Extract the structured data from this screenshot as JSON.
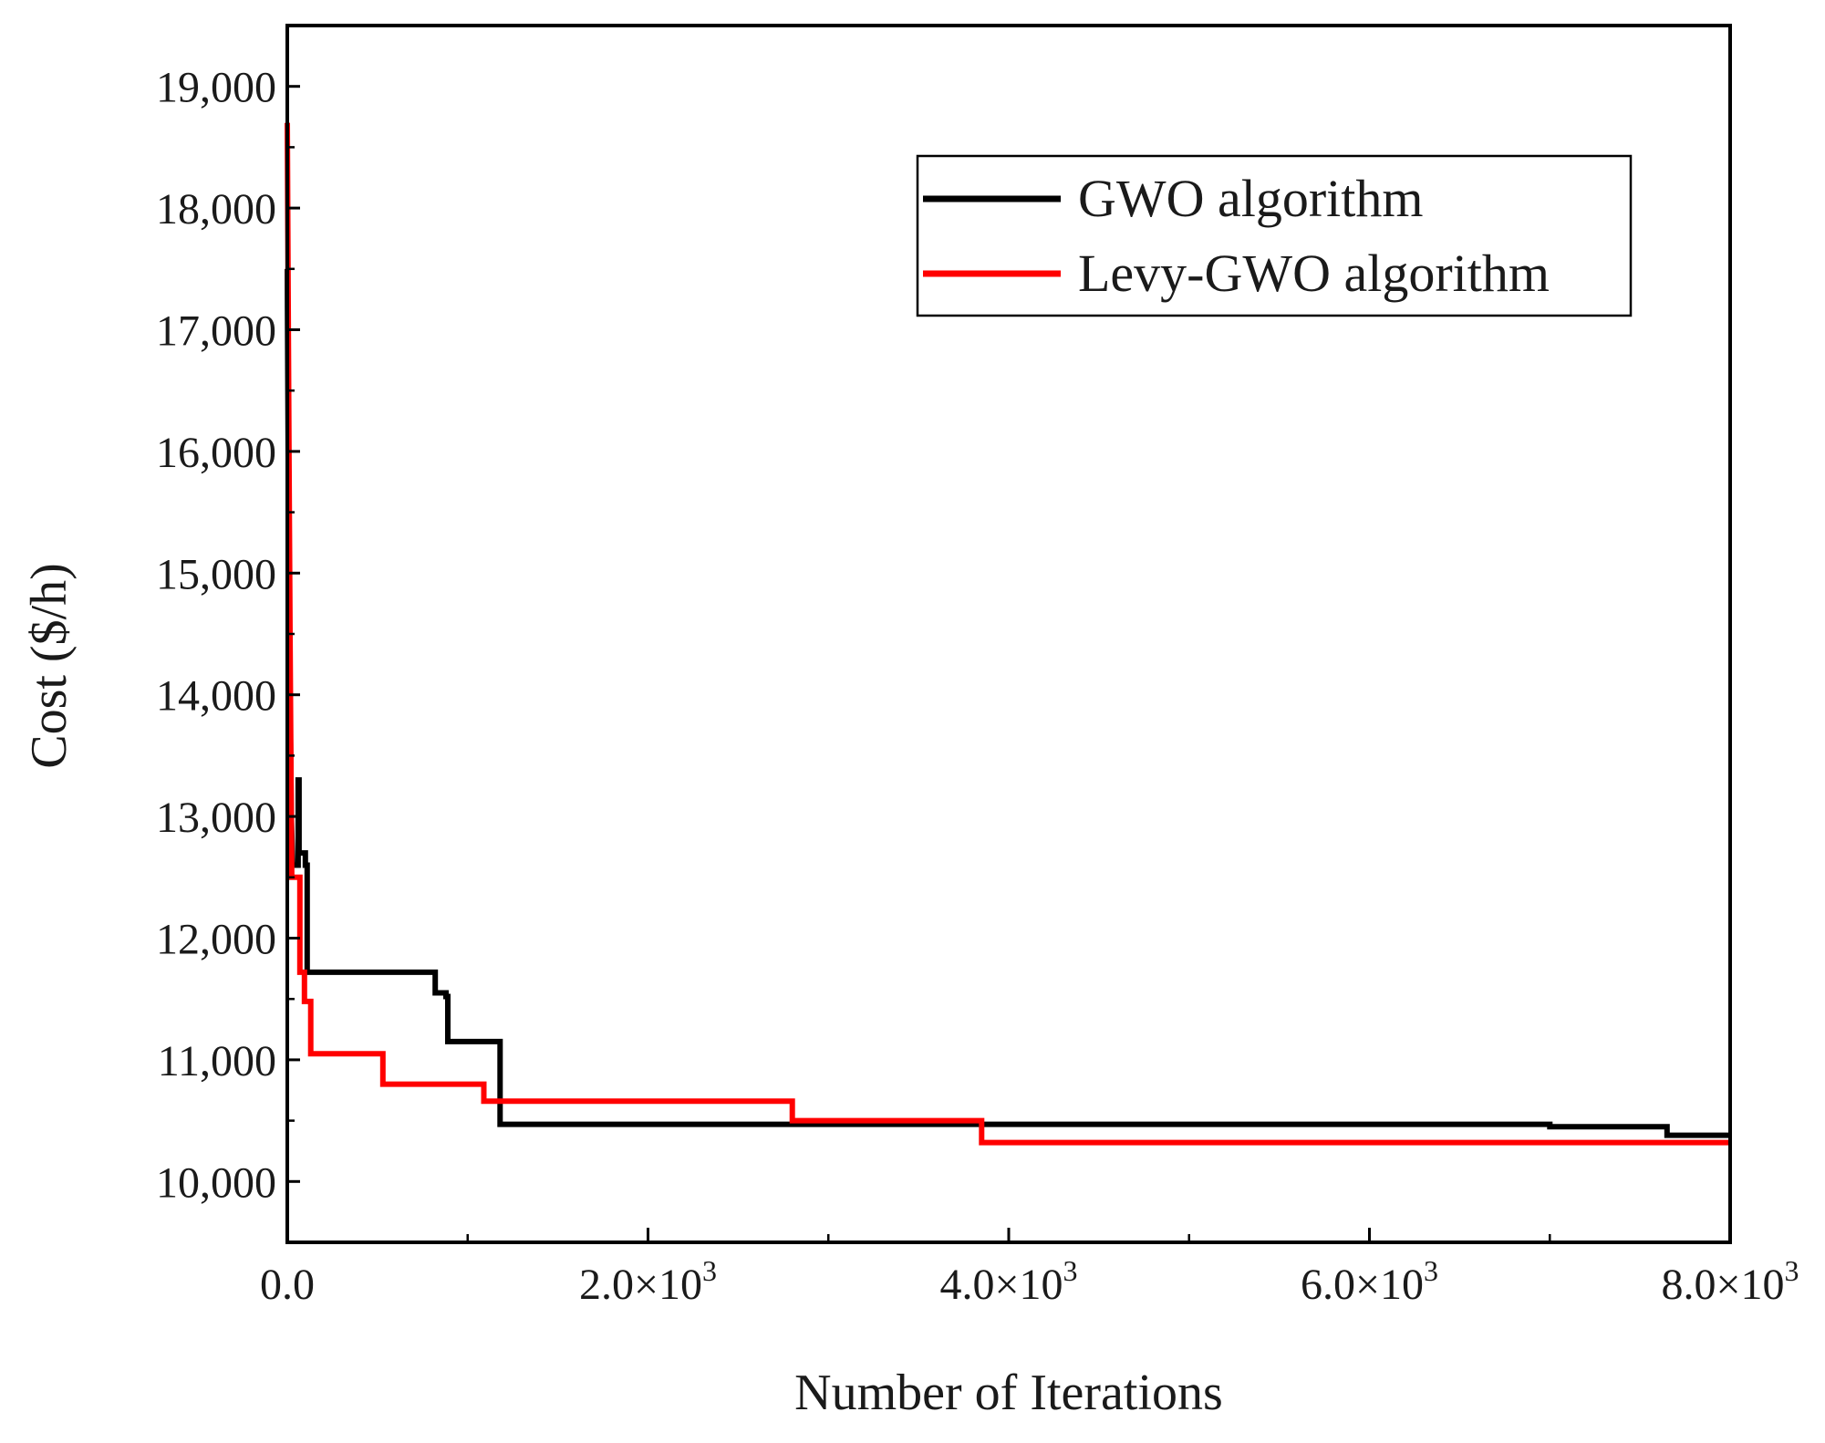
{
  "chart_data": {
    "type": "line",
    "title": "",
    "xlabel": "Number of Iterations",
    "ylabel": "Cost ($/h)",
    "xlim": [
      0,
      8000
    ],
    "ylim": [
      9500,
      19500
    ],
    "x_ticks": [
      {
        "value": 0,
        "label": "0.0"
      },
      {
        "value": 2000,
        "label": "2.0×10",
        "exp": "3"
      },
      {
        "value": 4000,
        "label": "4.0×10",
        "exp": "3"
      },
      {
        "value": 6000,
        "label": "6.0×10",
        "exp": "3"
      },
      {
        "value": 8000,
        "label": "8.0×10",
        "exp": "3"
      }
    ],
    "x_minor_ticks": [
      1000,
      3000,
      5000,
      7000
    ],
    "y_ticks": [
      {
        "value": 10000,
        "label": "10,000"
      },
      {
        "value": 11000,
        "label": "11,000"
      },
      {
        "value": 12000,
        "label": "12,000"
      },
      {
        "value": 13000,
        "label": "13,000"
      },
      {
        "value": 14000,
        "label": "14,000"
      },
      {
        "value": 15000,
        "label": "15,000"
      },
      {
        "value": 16000,
        "label": "16,000"
      },
      {
        "value": 17000,
        "label": "17,000"
      },
      {
        "value": 18000,
        "label": "18,000"
      },
      {
        "value": 19000,
        "label": "19,000"
      }
    ],
    "y_minor_ticks": [
      10500,
      11500,
      12500,
      13500,
      14500,
      15500,
      16500,
      17500,
      18500
    ],
    "grid": false,
    "legend_position": "top-right",
    "series": [
      {
        "name": "GWO algorithm",
        "color": "#000000",
        "points": [
          [
            0,
            17500
          ],
          [
            8,
            15000
          ],
          [
            15,
            14000
          ],
          [
            22,
            13000
          ],
          [
            30,
            12600
          ],
          [
            60,
            12600
          ],
          [
            60,
            13300
          ],
          [
            65,
            13300
          ],
          [
            65,
            12700
          ],
          [
            100,
            12700
          ],
          [
            100,
            12600
          ],
          [
            110,
            12600
          ],
          [
            110,
            11720
          ],
          [
            820,
            11720
          ],
          [
            820,
            11550
          ],
          [
            880,
            11550
          ],
          [
            880,
            11520
          ],
          [
            890,
            11520
          ],
          [
            890,
            11150
          ],
          [
            1180,
            11150
          ],
          [
            1180,
            10470
          ],
          [
            7000,
            10470
          ],
          [
            7000,
            10450
          ],
          [
            7650,
            10450
          ],
          [
            7650,
            10380
          ],
          [
            8000,
            10380
          ]
        ]
      },
      {
        "name": "Levy-GWO algorithm",
        "color": "#ff0000",
        "points": [
          [
            0,
            18700
          ],
          [
            5,
            17200
          ],
          [
            10,
            15800
          ],
          [
            15,
            14500
          ],
          [
            20,
            13400
          ],
          [
            25,
            12500
          ],
          [
            70,
            12500
          ],
          [
            70,
            11720
          ],
          [
            95,
            11720
          ],
          [
            95,
            11480
          ],
          [
            130,
            11480
          ],
          [
            130,
            11050
          ],
          [
            530,
            11050
          ],
          [
            530,
            10800
          ],
          [
            1090,
            10800
          ],
          [
            1090,
            10660
          ],
          [
            2800,
            10660
          ],
          [
            2800,
            10500
          ],
          [
            3850,
            10500
          ],
          [
            3850,
            10320
          ],
          [
            8000,
            10320
          ]
        ]
      }
    ]
  }
}
